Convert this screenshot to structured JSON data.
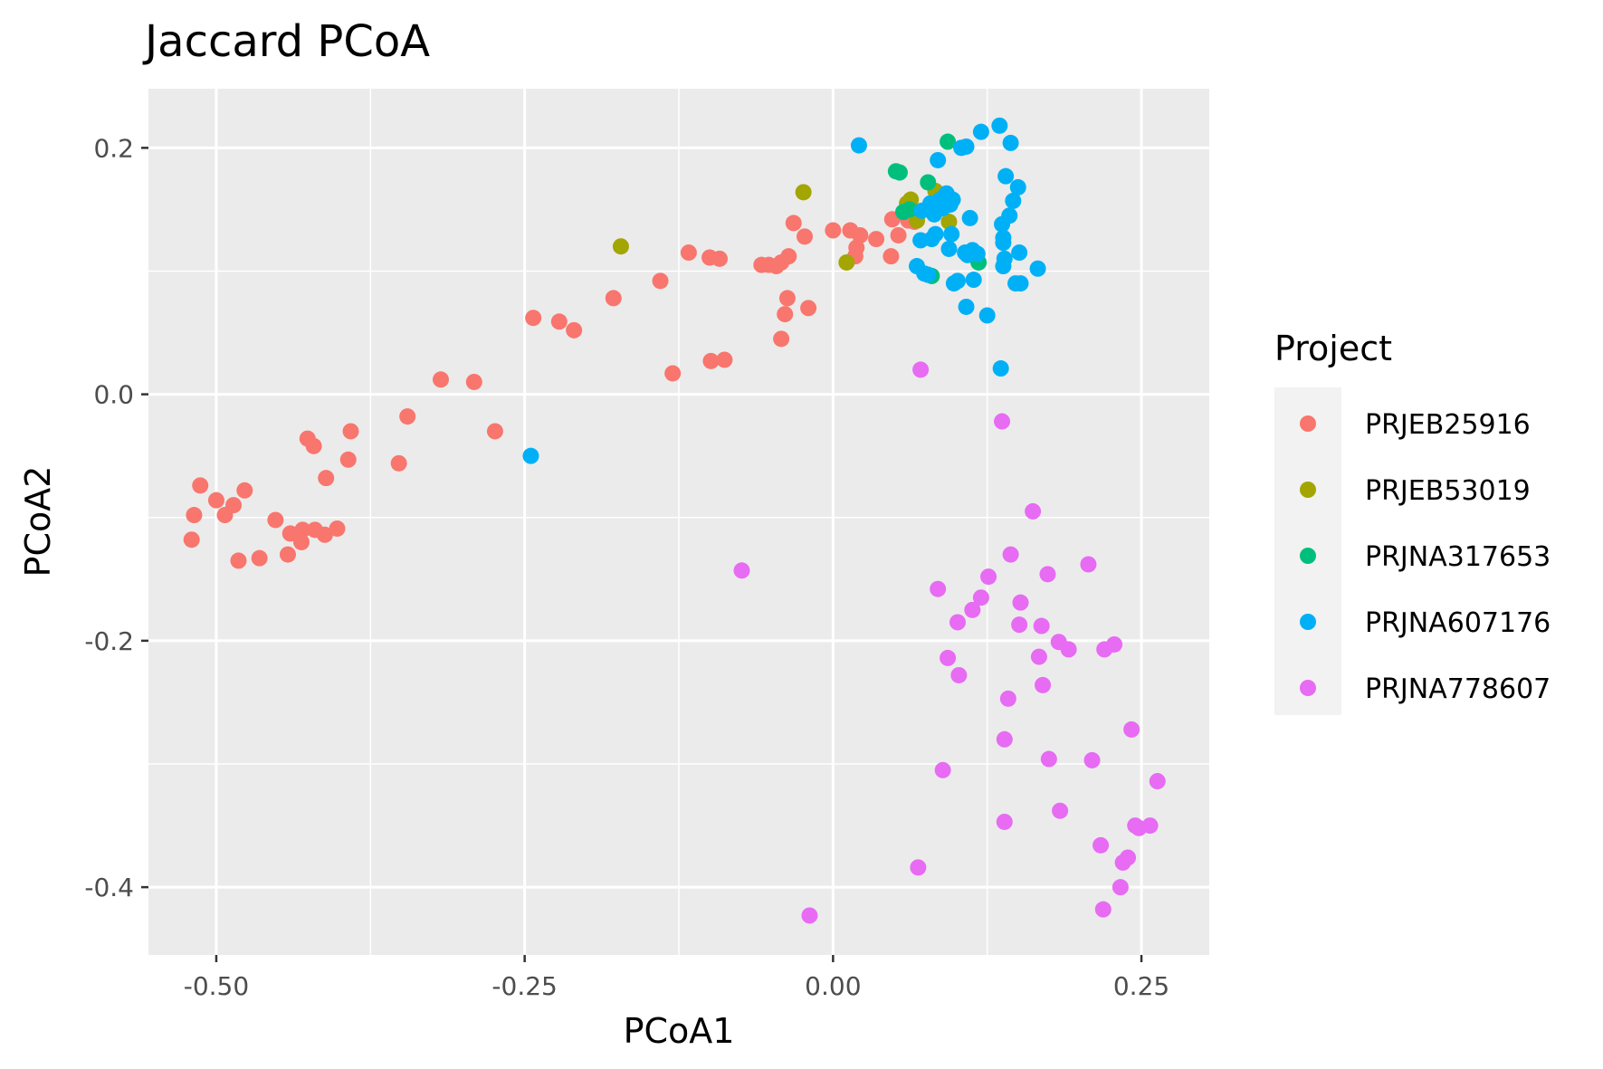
{
  "chart_data": {
    "type": "scatter",
    "title": "Jaccard PCoA",
    "xlabel": "PCoA1",
    "ylabel": "PCoA2",
    "xlim": [
      -0.555,
      0.305
    ],
    "ylim": [
      -0.455,
      0.248
    ],
    "x_ticks": [
      -0.5,
      -0.25,
      0.0,
      0.25
    ],
    "x_tick_labels": [
      "-0.50",
      "-0.25",
      "0.00",
      "0.25"
    ],
    "y_ticks": [
      -0.4,
      -0.2,
      0.0,
      0.2
    ],
    "y_tick_labels": [
      "-0.4",
      "-0.2",
      "0.0",
      "0.2"
    ],
    "grid": true,
    "legend": {
      "title": "Project",
      "position": "right"
    },
    "series": [
      {
        "name": "PRJEB25916",
        "color": "#F8766D",
        "points": [
          [
            -0.52,
            -0.118
          ],
          [
            -0.518,
            -0.098
          ],
          [
            -0.513,
            -0.074
          ],
          [
            -0.5,
            -0.086
          ],
          [
            -0.493,
            -0.098
          ],
          [
            -0.486,
            -0.09
          ],
          [
            -0.482,
            -0.135
          ],
          [
            -0.477,
            -0.078
          ],
          [
            -0.465,
            -0.133
          ],
          [
            -0.452,
            -0.102
          ],
          [
            -0.442,
            -0.13
          ],
          [
            -0.44,
            -0.113
          ],
          [
            -0.431,
            -0.12
          ],
          [
            -0.43,
            -0.11
          ],
          [
            -0.426,
            -0.036
          ],
          [
            -0.421,
            -0.042
          ],
          [
            -0.42,
            -0.11
          ],
          [
            -0.412,
            -0.114
          ],
          [
            -0.411,
            -0.068
          ],
          [
            -0.402,
            -0.109
          ],
          [
            -0.393,
            -0.053
          ],
          [
            -0.391,
            -0.03
          ],
          [
            -0.352,
            -0.056
          ],
          [
            -0.345,
            -0.018
          ],
          [
            -0.318,
            0.012
          ],
          [
            -0.291,
            0.01
          ],
          [
            -0.274,
            -0.03
          ],
          [
            -0.243,
            0.062
          ],
          [
            -0.222,
            0.059
          ],
          [
            -0.21,
            0.052
          ],
          [
            -0.178,
            0.078
          ],
          [
            -0.14,
            0.092
          ],
          [
            -0.13,
            0.017
          ],
          [
            -0.117,
            0.115
          ],
          [
            -0.1,
            0.111
          ],
          [
            -0.099,
            0.027
          ],
          [
            -0.092,
            0.11
          ],
          [
            -0.088,
            0.028
          ],
          [
            -0.058,
            0.105
          ],
          [
            -0.052,
            0.105
          ],
          [
            -0.046,
            0.104
          ],
          [
            -0.042,
            0.107
          ],
          [
            -0.042,
            0.045
          ],
          [
            -0.039,
            0.065
          ],
          [
            -0.037,
            0.078
          ],
          [
            -0.036,
            0.112
          ],
          [
            -0.032,
            0.139
          ],
          [
            -0.023,
            0.128
          ],
          [
            -0.02,
            0.07
          ],
          [
            0.0,
            0.133
          ],
          [
            0.014,
            0.133
          ],
          [
            0.018,
            0.112
          ],
          [
            0.019,
            0.119
          ],
          [
            0.022,
            0.129
          ],
          [
            0.035,
            0.126
          ],
          [
            0.047,
            0.112
          ],
          [
            0.048,
            0.142
          ],
          [
            0.053,
            0.129
          ],
          [
            0.061,
            0.141
          ],
          [
            0.066,
            0.14
          ]
        ]
      },
      {
        "name": "PRJEB53019",
        "color": "#A3A500",
        "points": [
          [
            -0.172,
            0.12
          ],
          [
            -0.024,
            0.164
          ],
          [
            0.011,
            0.107
          ],
          [
            0.06,
            0.155
          ],
          [
            0.063,
            0.158
          ],
          [
            0.068,
            0.141
          ],
          [
            0.083,
            0.165
          ],
          [
            0.094,
            0.14
          ]
        ]
      },
      {
        "name": "PRJNA317653",
        "color": "#00BF7D",
        "points": [
          [
            0.051,
            0.181
          ],
          [
            0.054,
            0.18
          ],
          [
            0.057,
            0.148
          ],
          [
            0.062,
            0.15
          ],
          [
            0.077,
            0.172
          ],
          [
            0.08,
            0.096
          ],
          [
            0.093,
            0.205
          ],
          [
            0.118,
            0.107
          ]
        ]
      },
      {
        "name": "PRJNA607176",
        "color": "#00B0F6",
        "points": [
          [
            -0.245,
            -0.05
          ],
          [
            0.021,
            0.202
          ],
          [
            0.068,
            0.104
          ],
          [
            0.071,
            0.125
          ],
          [
            0.072,
            0.149
          ],
          [
            0.074,
            0.098
          ],
          [
            0.077,
            0.097
          ],
          [
            0.079,
            0.155
          ],
          [
            0.08,
            0.126
          ],
          [
            0.082,
            0.146
          ],
          [
            0.083,
            0.13
          ],
          [
            0.085,
            0.19
          ],
          [
            0.087,
            0.158
          ],
          [
            0.089,
            0.151
          ],
          [
            0.092,
            0.163
          ],
          [
            0.094,
            0.118
          ],
          [
            0.095,
            0.154
          ],
          [
            0.096,
            0.13
          ],
          [
            0.097,
            0.158
          ],
          [
            0.098,
            0.09
          ],
          [
            0.101,
            0.092
          ],
          [
            0.104,
            0.2
          ],
          [
            0.107,
            0.115
          ],
          [
            0.108,
            0.201
          ],
          [
            0.108,
            0.071
          ],
          [
            0.109,
            0.113
          ],
          [
            0.111,
            0.143
          ],
          [
            0.113,
            0.117
          ],
          [
            0.114,
            0.093
          ],
          [
            0.117,
            0.114
          ],
          [
            0.12,
            0.213
          ],
          [
            0.125,
            0.064
          ],
          [
            0.135,
            0.218
          ],
          [
            0.136,
            0.021
          ],
          [
            0.137,
            0.138
          ],
          [
            0.138,
            0.104
          ],
          [
            0.138,
            0.127
          ],
          [
            0.138,
            0.123
          ],
          [
            0.139,
            0.11
          ],
          [
            0.14,
            0.177
          ],
          [
            0.143,
            0.145
          ],
          [
            0.144,
            0.204
          ],
          [
            0.146,
            0.157
          ],
          [
            0.148,
            0.09
          ],
          [
            0.15,
            0.168
          ],
          [
            0.151,
            0.115
          ],
          [
            0.152,
            0.09
          ],
          [
            0.166,
            0.102
          ]
        ]
      },
      {
        "name": "PRJNA778607",
        "color": "#E76BF3",
        "points": [
          [
            -0.074,
            -0.143
          ],
          [
            -0.019,
            -0.423
          ],
          [
            0.069,
            -0.384
          ],
          [
            0.071,
            0.02
          ],
          [
            0.085,
            -0.158
          ],
          [
            0.089,
            -0.305
          ],
          [
            0.093,
            -0.214
          ],
          [
            0.101,
            -0.185
          ],
          [
            0.102,
            -0.228
          ],
          [
            0.113,
            -0.175
          ],
          [
            0.12,
            -0.165
          ],
          [
            0.126,
            -0.148
          ],
          [
            0.137,
            -0.022
          ],
          [
            0.139,
            -0.28
          ],
          [
            0.139,
            -0.347
          ],
          [
            0.142,
            -0.247
          ],
          [
            0.144,
            -0.13
          ],
          [
            0.151,
            -0.187
          ],
          [
            0.152,
            -0.169
          ],
          [
            0.162,
            -0.095
          ],
          [
            0.167,
            -0.213
          ],
          [
            0.169,
            -0.188
          ],
          [
            0.17,
            -0.236
          ],
          [
            0.174,
            -0.146
          ],
          [
            0.175,
            -0.296
          ],
          [
            0.183,
            -0.201
          ],
          [
            0.184,
            -0.338
          ],
          [
            0.191,
            -0.207
          ],
          [
            0.207,
            -0.138
          ],
          [
            0.21,
            -0.297
          ],
          [
            0.217,
            -0.366
          ],
          [
            0.219,
            -0.418
          ],
          [
            0.22,
            -0.207
          ],
          [
            0.228,
            -0.203
          ],
          [
            0.233,
            -0.4
          ],
          [
            0.235,
            -0.38
          ],
          [
            0.239,
            -0.376
          ],
          [
            0.242,
            -0.272
          ],
          [
            0.245,
            -0.35
          ],
          [
            0.248,
            -0.352
          ],
          [
            0.257,
            -0.35
          ],
          [
            0.263,
            -0.314
          ]
        ]
      }
    ]
  }
}
